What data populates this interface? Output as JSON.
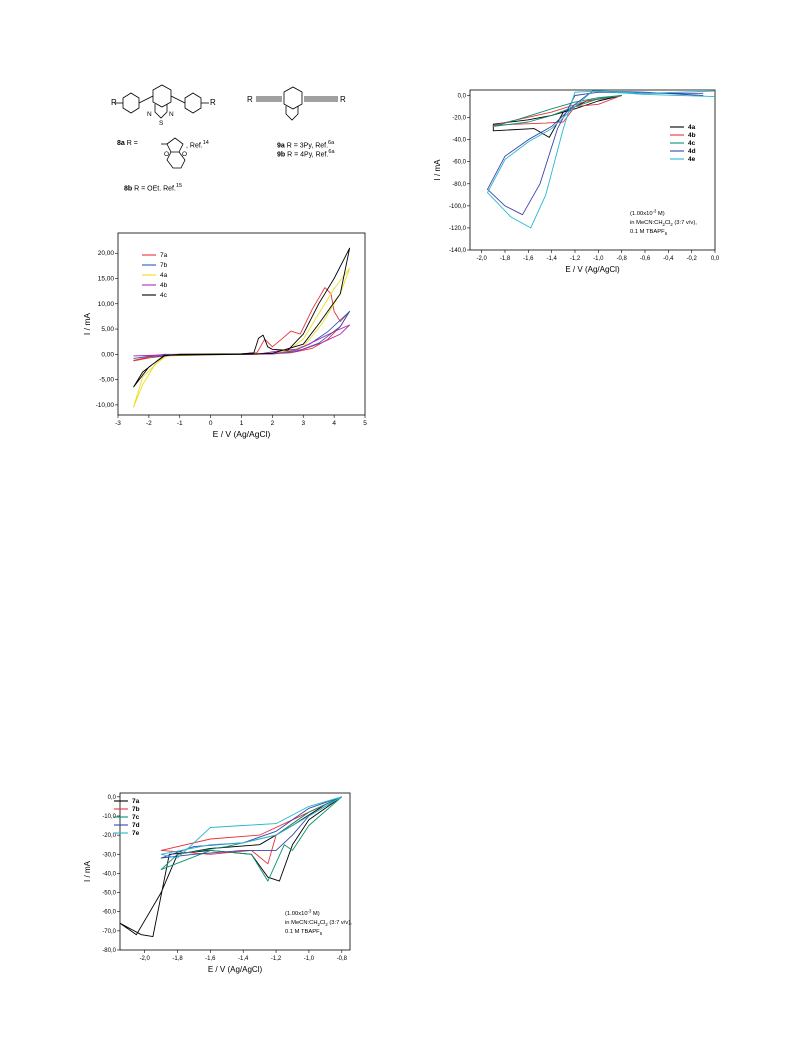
{
  "structures": {
    "left_R": "R",
    "right_R": "R",
    "left_R2": "R",
    "right_R2": "R",
    "atom_S": "S",
    "atom_N1": "N",
    "atom_N2": "N",
    "atom_O1": "O",
    "atom_O2": "O",
    "caption_8a_label": "8a",
    "caption_8a_text": " R = ",
    "caption_8a_ref": ", Ref.",
    "caption_8a_refnum": "14",
    "caption_8b_label": "8b",
    "caption_8b_text": " R = OEt. Ref.",
    "caption_8b_refnum": "15",
    "caption_9a_label": "9a",
    "caption_9a_text": " R = 3Py, Ref.",
    "caption_9a_refnum": "6a",
    "caption_9b_label": "9b",
    "caption_9b_text": " R = 4Py, Ref.",
    "caption_9b_refnum": "6a"
  },
  "colors": {
    "black": "#000000",
    "red": "#e8323c",
    "blue": "#2a5cb8",
    "yellow": "#e8e020",
    "purple": "#b02ab0",
    "green": "#0a9070",
    "navy": "#3a44a8",
    "cyan": "#28b8d0"
  },
  "chart_data": [
    {
      "type": "line",
      "xlabel": "E / V (Ag/AgCl)",
      "ylabel": "I / mA",
      "xlim": [
        -3,
        5
      ],
      "ylim": [
        -12,
        24
      ],
      "x_ticks": [
        "-3",
        "-2",
        "-1",
        "0",
        "1",
        "2",
        "3",
        "4",
        "5"
      ],
      "y_ticks": [
        "-10,00",
        "-5,00",
        "0,00",
        "5,00",
        "10,00",
        "15,00",
        "20,00"
      ],
      "legend_position": "top-left",
      "series": [
        {
          "name": "7a",
          "color": "red",
          "points": [
            [
              -2.5,
              -1.2
            ],
            [
              -2.0,
              -0.5
            ],
            [
              -1.5,
              -0.1
            ],
            [
              0,
              0
            ],
            [
              1.0,
              0.1
            ],
            [
              1.5,
              0.3
            ],
            [
              1.75,
              3.0
            ],
            [
              2.0,
              1.5
            ],
            [
              2.3,
              3.0
            ],
            [
              2.6,
              4.6
            ],
            [
              2.9,
              4.0
            ],
            [
              3.3,
              9.0
            ],
            [
              3.7,
              13.2
            ],
            [
              3.9,
              12.0
            ],
            [
              4.0,
              8.5
            ],
            [
              4.2,
              6.5
            ],
            [
              4.5,
              8.5
            ],
            [
              4.2,
              5.5
            ],
            [
              3.8,
              3.0
            ],
            [
              3.3,
              1.2
            ],
            [
              2.6,
              0.3
            ],
            [
              2.0,
              0.1
            ],
            [
              1.0,
              0
            ],
            [
              -1.0,
              0
            ],
            [
              -2.0,
              -0.7
            ],
            [
              -2.5,
              -1.3
            ]
          ]
        },
        {
          "name": "7b",
          "color": "blue",
          "points": [
            [
              -2.5,
              -0.8
            ],
            [
              -1.5,
              0
            ],
            [
              0,
              0
            ],
            [
              1.5,
              0.05
            ],
            [
              2.5,
              0.5
            ],
            [
              3.2,
              2.0
            ],
            [
              3.8,
              4.5
            ],
            [
              4.5,
              8.5
            ],
            [
              4.2,
              5.5
            ],
            [
              3.5,
              2.2
            ],
            [
              2.8,
              0.6
            ],
            [
              2.0,
              0.05
            ],
            [
              0,
              0
            ],
            [
              -2.0,
              -0.4
            ],
            [
              -2.5,
              -0.8
            ]
          ]
        },
        {
          "name": "4a",
          "color": "yellow",
          "points": [
            [
              -2.5,
              -10.5
            ],
            [
              -2.2,
              -6.0
            ],
            [
              -1.8,
              -2.0
            ],
            [
              -1.4,
              -0.2
            ],
            [
              0,
              0
            ],
            [
              2.0,
              0.2
            ],
            [
              2.5,
              0.7
            ],
            [
              3.0,
              3.0
            ],
            [
              3.5,
              8.0
            ],
            [
              4.0,
              13.0
            ],
            [
              4.5,
              17.0
            ],
            [
              4.2,
              12.0
            ],
            [
              3.6,
              6.0
            ],
            [
              3.0,
              1.5
            ],
            [
              2.3,
              0.3
            ],
            [
              1.0,
              0
            ],
            [
              -1.5,
              -0.3
            ],
            [
              -2.2,
              -4.5
            ],
            [
              -2.5,
              -10.5
            ]
          ]
        },
        {
          "name": "4b",
          "color": "purple",
          "points": [
            [
              -2.5,
              -0.3
            ],
            [
              -1.0,
              0
            ],
            [
              1.5,
              0
            ],
            [
              2.3,
              0.8
            ],
            [
              2.8,
              1.0
            ],
            [
              3.0,
              1.5
            ],
            [
              3.5,
              3.0
            ],
            [
              4.0,
              4.5
            ],
            [
              4.5,
              5.8
            ],
            [
              4.2,
              4.0
            ],
            [
              3.6,
              2.3
            ],
            [
              3.0,
              1.0
            ],
            [
              2.0,
              0.1
            ],
            [
              0,
              0
            ],
            [
              -2.5,
              -0.3
            ]
          ]
        },
        {
          "name": "4c",
          "color": "black",
          "points": [
            [
              -2.5,
              -6.5
            ],
            [
              -2.0,
              -2.5
            ],
            [
              -1.5,
              -0.3
            ],
            [
              -1.0,
              0
            ],
            [
              1.0,
              0.1
            ],
            [
              1.4,
              0.3
            ],
            [
              1.55,
              3.2
            ],
            [
              1.7,
              3.8
            ],
            [
              1.85,
              1.5
            ],
            [
              2.0,
              1.0
            ],
            [
              2.5,
              0.8
            ],
            [
              3.0,
              4.0
            ],
            [
              3.5,
              10.0
            ],
            [
              4.0,
              15.0
            ],
            [
              4.5,
              21.0
            ],
            [
              4.2,
              12.0
            ],
            [
              3.5,
              6.0
            ],
            [
              3.0,
              2.0
            ],
            [
              2.0,
              0.2
            ],
            [
              1.0,
              0
            ],
            [
              -1.5,
              -0.2
            ],
            [
              -2.2,
              -3.5
            ],
            [
              -2.5,
              -6.5
            ]
          ]
        }
      ]
    },
    {
      "type": "line",
      "xlabel": "E / V (Ag/AgCl)",
      "ylabel": "I / mA",
      "xlim": [
        -2.1,
        0.0
      ],
      "ylim": [
        -140,
        5
      ],
      "x_ticks": [
        "-2,0",
        "-1,8",
        "-1,6",
        "-1,4",
        "-1,2",
        "-1,0",
        "-0,8",
        "-0,6",
        "-0,4",
        "-0,2",
        "0,0"
      ],
      "y_ticks": [
        "-140,0",
        "-120,0",
        "-100,0",
        "-80,0",
        "-60,0",
        "-40,0",
        "-20,0",
        "0,0"
      ],
      "legend_position": "top-right",
      "annotation_lines": [
        "(1.00x10",
        "-3",
        " M)",
        "in MeCN:CH",
        "2",
        "Cl",
        "2",
        " (3:7 v/v),",
        "0.1 M TBAPF",
        "6"
      ],
      "series": [
        {
          "name": "4a",
          "color": "black",
          "points": [
            [
              -0.8,
              0
            ],
            [
              -1.1,
              -5
            ],
            [
              -1.3,
              -15
            ],
            [
              -1.42,
              -38
            ],
            [
              -1.55,
              -30
            ],
            [
              -1.9,
              -32
            ],
            [
              -1.9,
              -26
            ],
            [
              -1.6,
              -22
            ],
            [
              -1.4,
              -18
            ],
            [
              -1.2,
              -12
            ],
            [
              -1.0,
              -5
            ],
            [
              -0.8,
              0
            ]
          ]
        },
        {
          "name": "4b",
          "color": "red",
          "points": [
            [
              -0.8,
              0
            ],
            [
              -1.0,
              -8
            ],
            [
              -1.2,
              -10
            ],
            [
              -1.3,
              -24
            ],
            [
              -1.45,
              -25
            ],
            [
              -1.7,
              -26
            ],
            [
              -1.9,
              -27
            ],
            [
              -1.7,
              -22
            ],
            [
              -1.4,
              -15
            ],
            [
              -1.1,
              -5
            ],
            [
              -0.8,
              0
            ]
          ]
        },
        {
          "name": "4c",
          "color": "green",
          "points": [
            [
              -0.8,
              0
            ],
            [
              -1.0,
              -3
            ],
            [
              -1.2,
              -10
            ],
            [
              -1.4,
              -18
            ],
            [
              -1.6,
              -24
            ],
            [
              -1.9,
              -28
            ],
            [
              -1.7,
              -22
            ],
            [
              -1.4,
              -12
            ],
            [
              -1.2,
              -6
            ],
            [
              -1.0,
              -2
            ],
            [
              -0.8,
              0
            ]
          ]
        },
        {
          "name": "4d",
          "color": "navy",
          "points": [
            [
              -0.1,
              2
            ],
            [
              -0.6,
              2
            ],
            [
              -1.0,
              3
            ],
            [
              -1.2,
              0
            ],
            [
              -1.35,
              -30
            ],
            [
              -1.5,
              -80
            ],
            [
              -1.65,
              -108
            ],
            [
              -1.8,
              -100
            ],
            [
              -1.95,
              -85
            ],
            [
              -1.8,
              -55
            ],
            [
              -1.6,
              -40
            ],
            [
              -1.4,
              -28
            ],
            [
              -1.2,
              -8
            ],
            [
              -1.05,
              4
            ],
            [
              -0.6,
              3
            ],
            [
              -0.1,
              0
            ]
          ]
        },
        {
          "name": "4e",
          "color": "cyan",
          "points": [
            [
              0,
              4
            ],
            [
              -0.6,
              2
            ],
            [
              -1.0,
              4
            ],
            [
              -1.2,
              3
            ],
            [
              -1.3,
              -30
            ],
            [
              -1.45,
              -90
            ],
            [
              -1.58,
              -120
            ],
            [
              -1.75,
              -110
            ],
            [
              -1.95,
              -88
            ],
            [
              -1.8,
              -58
            ],
            [
              -1.6,
              -42
            ],
            [
              -1.4,
              -30
            ],
            [
              -1.2,
              -10
            ],
            [
              -1.05,
              4
            ],
            [
              -0.6,
              1
            ],
            [
              0,
              -1
            ]
          ]
        }
      ]
    },
    {
      "type": "line",
      "xlabel": "E / V (Ag/AgCl)",
      "ylabel": "I / mA",
      "xlim": [
        -2.15,
        -0.75
      ],
      "ylim": [
        -80,
        2
      ],
      "x_ticks": [
        "-2,0",
        "-1,8",
        "-1,6",
        "-1,4",
        "-1,2",
        "-1,0",
        "-0,8"
      ],
      "y_ticks": [
        "-80,0",
        "-70,0",
        "-60,0",
        "-50,0",
        "-40,0",
        "-30,0",
        "-20,0",
        "-10,0",
        "0,0"
      ],
      "legend_position": "top-left",
      "annotation_lines": [
        "(1.00x10",
        "-3",
        " M)",
        "in MeCN:CH",
        "2",
        "Cl",
        "2",
        " (3:7 v/v),",
        "0.1 M TBAPF",
        "6"
      ],
      "series": [
        {
          "name": "7a",
          "color": "black",
          "points": [
            [
              -0.8,
              0
            ],
            [
              -1.0,
              -12
            ],
            [
              -1.1,
              -25
            ],
            [
              -1.18,
              -44
            ],
            [
              -1.25,
              -42
            ],
            [
              -1.35,
              -30
            ],
            [
              -1.6,
              -28
            ],
            [
              -1.85,
              -30
            ],
            [
              -1.95,
              -73
            ],
            [
              -2.02,
              -72
            ],
            [
              -2.15,
              -66
            ],
            [
              -2.05,
              -72
            ],
            [
              -1.9,
              -50
            ],
            [
              -1.8,
              -30
            ],
            [
              -1.6,
              -27
            ],
            [
              -1.3,
              -25
            ],
            [
              -1.1,
              -15
            ],
            [
              -0.9,
              -4
            ],
            [
              -0.8,
              0
            ]
          ]
        },
        {
          "name": "7b",
          "color": "red",
          "points": [
            [
              -0.8,
              0
            ],
            [
              -1.0,
              -8
            ],
            [
              -1.2,
              -20
            ],
            [
              -1.25,
              -35
            ],
            [
              -1.35,
              -28
            ],
            [
              -1.6,
              -30
            ],
            [
              -1.9,
              -28
            ],
            [
              -1.6,
              -22
            ],
            [
              -1.3,
              -20
            ],
            [
              -1.1,
              -12
            ],
            [
              -0.8,
              0
            ]
          ]
        },
        {
          "name": "7c",
          "color": "green",
          "points": [
            [
              -0.8,
              0
            ],
            [
              -1.0,
              -15
            ],
            [
              -1.1,
              -28
            ],
            [
              -1.15,
              -25
            ],
            [
              -1.25,
              -44
            ],
            [
              -1.35,
              -30
            ],
            [
              -1.6,
              -28
            ],
            [
              -1.9,
              -38
            ],
            [
              -1.8,
              -30
            ],
            [
              -1.5,
              -26
            ],
            [
              -1.2,
              -20
            ],
            [
              -1.0,
              -8
            ],
            [
              -0.8,
              0
            ]
          ]
        },
        {
          "name": "7d",
          "color": "navy",
          "points": [
            [
              -0.8,
              0
            ],
            [
              -1.0,
              -10
            ],
            [
              -1.1,
              -20
            ],
            [
              -1.2,
              -28
            ],
            [
              -1.4,
              -28
            ],
            [
              -1.7,
              -30
            ],
            [
              -1.9,
              -32
            ],
            [
              -1.7,
              -26
            ],
            [
              -1.4,
              -24
            ],
            [
              -1.2,
              -18
            ],
            [
              -1.0,
              -6
            ],
            [
              -0.8,
              0
            ]
          ]
        },
        {
          "name": "7e",
          "color": "cyan",
          "points": [
            [
              -0.8,
              0
            ],
            [
              -1.0,
              -5
            ],
            [
              -1.2,
              -14
            ],
            [
              -1.4,
              -15
            ],
            [
              -1.6,
              -16
            ],
            [
              -1.8,
              -32
            ],
            [
              -1.9,
              -30
            ],
            [
              -1.6,
              -25
            ],
            [
              -1.4,
              -24
            ],
            [
              -1.2,
              -20
            ],
            [
              -1.0,
              -10
            ],
            [
              -0.8,
              0
            ]
          ]
        }
      ]
    }
  ]
}
